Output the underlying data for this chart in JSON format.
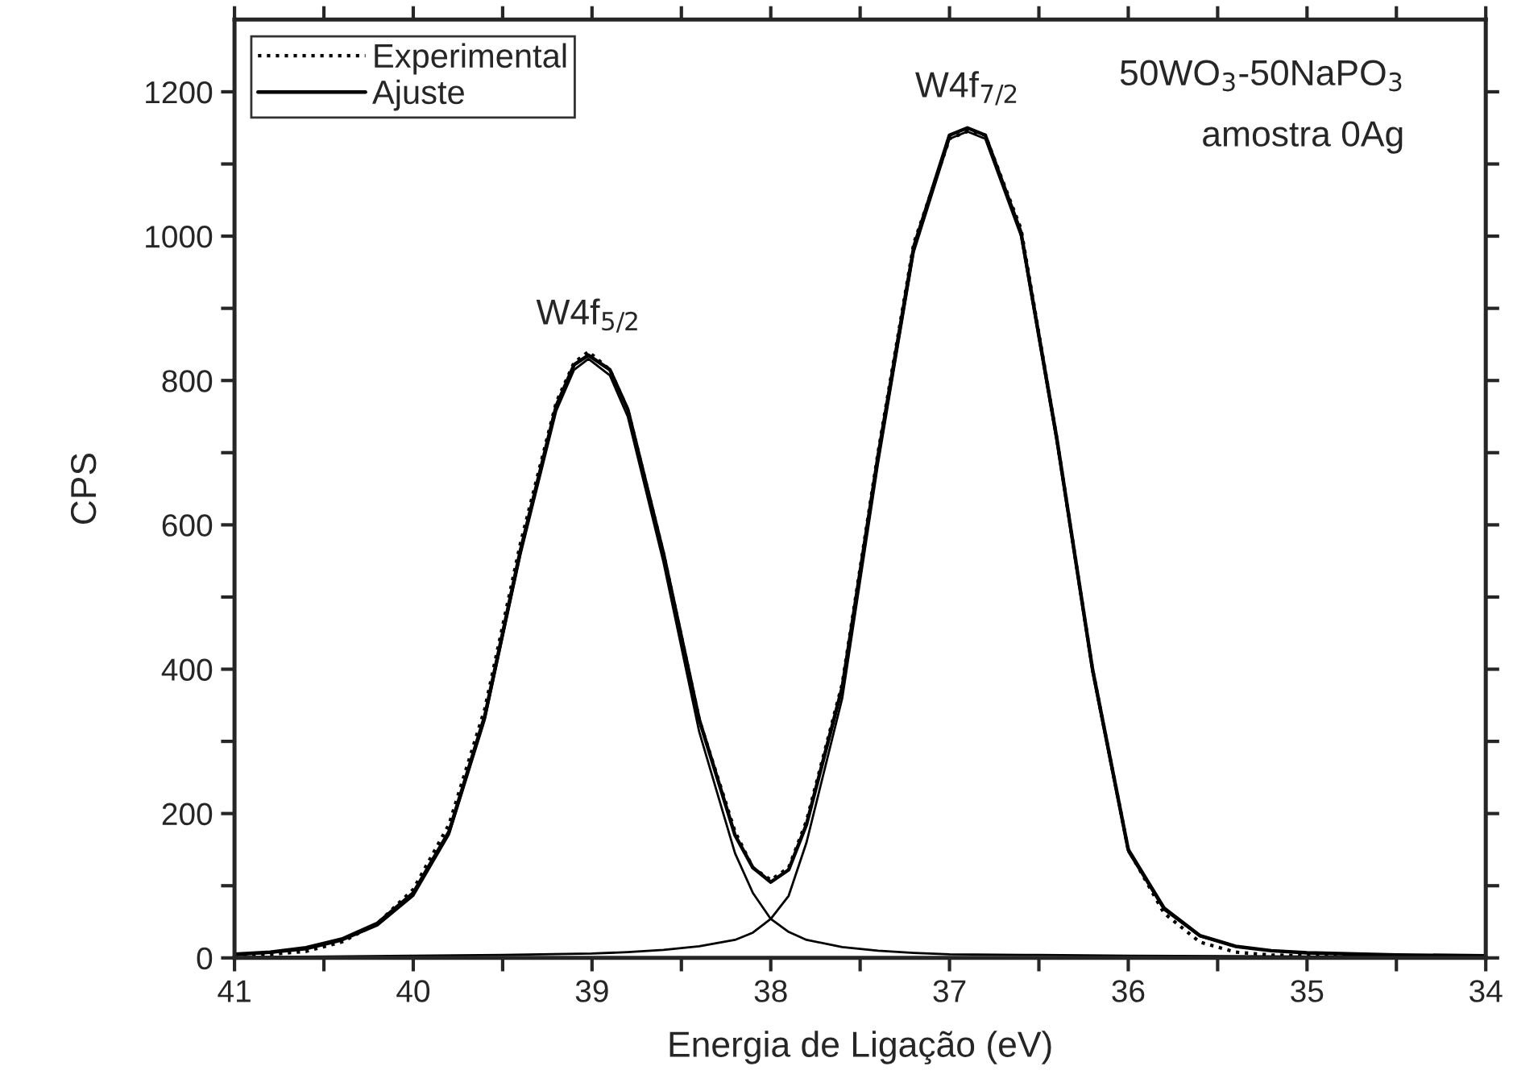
{
  "chart_data": {
    "type": "line",
    "xlabel": "Energia de Ligação (eV)",
    "ylabel": "CPS",
    "xlim": [
      41,
      34
    ],
    "ylim": [
      0,
      1300
    ],
    "xticks": [
      41,
      {
        "value": 40.5,
        "label": null
      },
      40,
      {
        "value": 39.5,
        "label": null
      },
      39,
      {
        "value": 38.5,
        "label": null
      },
      38,
      {
        "value": 37.5,
        "label": null
      },
      37,
      {
        "value": 36.5,
        "label": null
      },
      36,
      {
        "value": 35.5,
        "label": null
      },
      35,
      {
        "value": 34.5,
        "label": null
      },
      34
    ],
    "yticks": [
      0,
      {
        "value": 100,
        "label": null
      },
      200,
      {
        "value": 300,
        "label": null
      },
      400,
      {
        "value": 500,
        "label": null
      },
      600,
      {
        "value": 700,
        "label": null
      },
      800,
      {
        "value": 900,
        "label": null
      },
      1000,
      {
        "value": 1100,
        "label": null
      },
      1200
    ],
    "grid": false,
    "legend": "top left",
    "marker": "none",
    "series": [
      {
        "name": "Experimental",
        "color": "#000000",
        "line_style": "dotted",
        "x": [
          41,
          40.8,
          40.6,
          40.4,
          40.2,
          40.0,
          39.8,
          39.6,
          39.4,
          39.2,
          39.1,
          39.02,
          38.9,
          38.8,
          38.6,
          38.4,
          38.2,
          38.1,
          38.0,
          37.9,
          37.8,
          37.6,
          37.4,
          37.2,
          37.0,
          36.9,
          36.8,
          36.6,
          36.4,
          36.2,
          36.0,
          35.8,
          35.6,
          35.4,
          35.2,
          35.0,
          34.5,
          34.0
        ],
        "values": [
          3,
          5,
          9,
          22,
          48,
          95,
          185,
          345,
          575,
          770,
          825,
          840,
          815,
          760,
          560,
          330,
          175,
          125,
          108,
          125,
          190,
          380,
          700,
          990,
          1135,
          1145,
          1140,
          1010,
          720,
          400,
          150,
          62,
          22,
          8,
          4,
          3,
          2,
          2
        ]
      },
      {
        "name": "Ajuste",
        "color": "#000000",
        "line_style": "solid",
        "x": [
          41,
          40.8,
          40.6,
          40.4,
          40.2,
          40.0,
          39.8,
          39.6,
          39.4,
          39.2,
          39.1,
          39.02,
          38.9,
          38.8,
          38.6,
          38.4,
          38.2,
          38.1,
          38.0,
          37.9,
          37.8,
          37.6,
          37.4,
          37.2,
          37.0,
          36.9,
          36.8,
          36.6,
          36.4,
          36.2,
          36.0,
          35.8,
          35.6,
          35.4,
          35.2,
          35.0,
          34.5,
          34.0
        ],
        "values": [
          5,
          8,
          14,
          26,
          48,
          90,
          175,
          335,
          565,
          765,
          822,
          835,
          815,
          760,
          560,
          330,
          170,
          125,
          105,
          122,
          185,
          375,
          695,
          985,
          1140,
          1150,
          1140,
          1005,
          720,
          400,
          150,
          69,
          31,
          16,
          10,
          7,
          4,
          3
        ]
      },
      {
        "color": "#000000",
        "line_style": "solid",
        "x": [
          41,
          40.8,
          40.6,
          40.4,
          40.2,
          40.0,
          39.8,
          39.6,
          39.4,
          39.2,
          39.1,
          39.02,
          38.9,
          38.8,
          38.6,
          38.4,
          38.2,
          38.1,
          38.0,
          37.9,
          37.8,
          37.6,
          37.4,
          37.2,
          37.0,
          36.5,
          36.0,
          35.0,
          34.0
        ],
        "values": [
          4,
          7,
          12,
          24,
          45,
          86,
          171,
          330,
          559,
          758,
          815,
          830,
          807,
          750,
          548,
          313,
          145,
          90,
          54,
          36,
          25,
          15,
          10,
          7,
          5,
          4,
          3,
          2,
          1
        ]
      },
      {
        "color": "#000000",
        "line_style": "solid",
        "x": [
          41,
          40.5,
          40.0,
          39.5,
          39.0,
          38.8,
          38.6,
          38.4,
          38.2,
          38.1,
          38.0,
          37.9,
          37.8,
          37.6,
          37.4,
          37.2,
          37.0,
          36.9,
          36.8,
          36.6,
          36.4,
          36.2,
          36.0,
          35.8,
          35.6,
          35.4,
          35.2,
          35.0,
          34.5,
          34.0
        ],
        "values": [
          1,
          2,
          3,
          4,
          6,
          8,
          11,
          16,
          25,
          35,
          54,
          86,
          160,
          360,
          685,
          978,
          1135,
          1145,
          1135,
          1000,
          715,
          396,
          147,
          67,
          30,
          16,
          10,
          7,
          4,
          3
        ]
      }
    ],
    "annotations": [
      {
        "text": "W4f$_{5/2}$",
        "x": 39.02,
        "y": 835
      },
      {
        "text": "W4f$_{7/2}$",
        "x": 36.9,
        "y": 1150
      },
      "50WO$_{3}$-50NaPO$_{3}$",
      "amostra 0Ag"
    ]
  }
}
